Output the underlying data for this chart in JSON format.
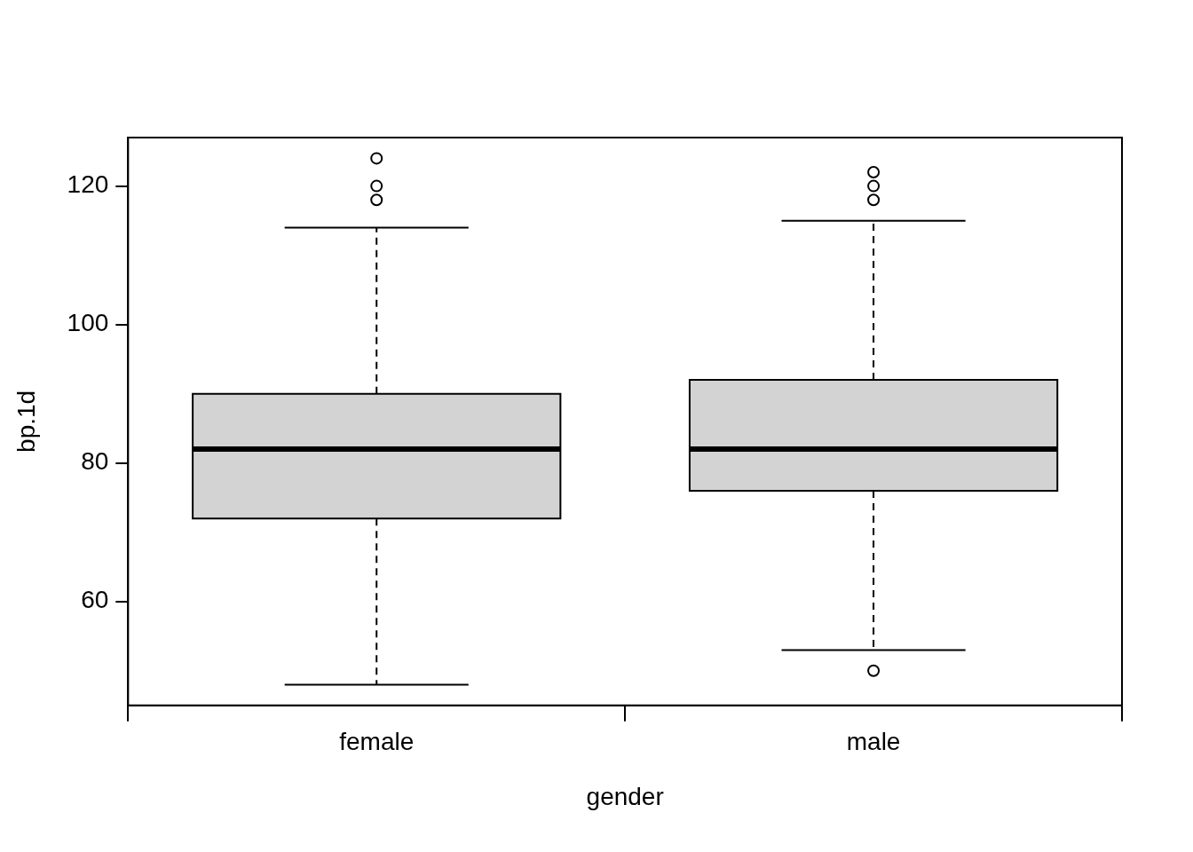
{
  "chart_data": {
    "type": "box",
    "xlabel": "gender",
    "ylabel": "bp.1d",
    "categories": [
      "female",
      "male"
    ],
    "boxes": [
      {
        "low": 48,
        "q1": 72,
        "median": 82,
        "q3": 90,
        "high": 114,
        "outliers": [
          118,
          120,
          124
        ]
      },
      {
        "low": 53,
        "q1": 76,
        "median": 82,
        "q3": 92,
        "high": 115,
        "outliers": [
          50,
          118,
          120,
          122
        ]
      }
    ],
    "color": "#d3d3d3",
    "ylim": [
      45,
      127
    ],
    "yticks": [
      60,
      80,
      100,
      120
    ],
    "grid": false,
    "legend": false,
    "marker": "circle"
  }
}
